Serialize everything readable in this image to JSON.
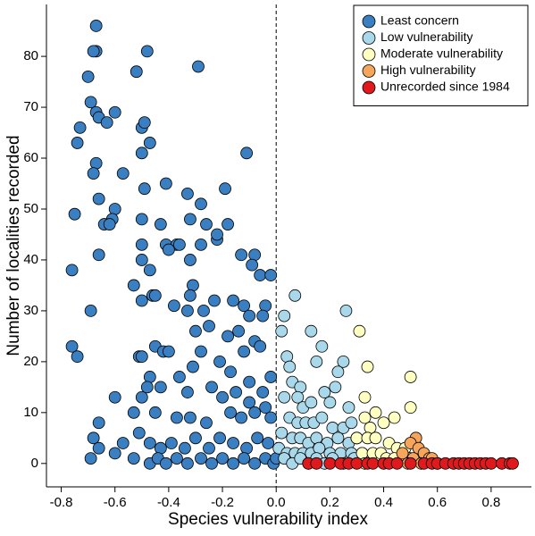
{
  "chart_data": {
    "type": "scatter",
    "xlabel": "Species vulnerability index",
    "ylabel": "Number of localities recorded",
    "xlim": [
      -0.855,
      0.95
    ],
    "ylim": [
      -4.6,
      90.2
    ],
    "xticks": [
      -0.8,
      -0.6,
      -0.4,
      -0.2,
      {
        "value": 0,
        "label": "0.0"
      },
      0.2,
      0.4,
      0.6,
      0.8
    ],
    "yticks": [
      0,
      10,
      20,
      30,
      40,
      50,
      60,
      70,
      80
    ],
    "vline": 0,
    "legend": "upper right",
    "series": [
      {
        "name": "Least concern",
        "color": "#3a7fc1",
        "x": [
          -0.67,
          -0.67,
          -0.68,
          -0.48,
          -0.52,
          -0.29,
          -0.7,
          -0.69,
          -0.67,
          -0.66,
          -0.6,
          -0.63,
          -0.73,
          -0.74,
          -0.5,
          -0.49,
          -0.47,
          -0.67,
          -0.68,
          -0.57,
          -0.5,
          -0.11,
          -0.49,
          -0.66,
          -0.6,
          -0.61,
          -0.5,
          -0.75,
          -0.64,
          -0.62,
          -0.41,
          -0.33,
          -0.19,
          -0.43,
          -0.32,
          -0.26,
          -0.41,
          -0.37,
          -0.36,
          -0.5,
          -0.28,
          -0.18,
          -0.28,
          -0.22,
          -0.22,
          -0.5,
          -0.47,
          -0.53,
          -0.4,
          -0.32,
          -0.76,
          -0.66,
          -0.31,
          -0.32,
          -0.13,
          -0.08,
          -0.09,
          -0.06,
          -0.02,
          -0.5,
          -0.46,
          -0.45,
          -0.38,
          -0.33,
          -0.27,
          -0.23,
          -0.16,
          -0.12,
          -0.1,
          -0.04,
          -0.05,
          -0.69,
          -0.76,
          -0.74,
          -0.45,
          -0.42,
          -0.4,
          -0.3,
          -0.25,
          -0.18,
          -0.14,
          -0.12,
          -0.08,
          -0.06,
          -0.28,
          -0.21,
          -0.51,
          -0.5,
          -0.47,
          -0.36,
          -0.31,
          -0.17,
          -0.1,
          -0.02,
          -0.6,
          -0.5,
          -0.48,
          -0.43,
          -0.33,
          -0.24,
          -0.2,
          -0.15,
          -0.1,
          -0.05,
          -0.66,
          -0.53,
          -0.45,
          -0.37,
          -0.32,
          -0.26,
          -0.17,
          -0.13,
          -0.08,
          -0.04,
          -0.02,
          -0.68,
          -0.66,
          -0.57,
          -0.51,
          -0.47,
          -0.43,
          -0.39,
          -0.34,
          -0.3,
          -0.25,
          -0.21,
          -0.16,
          -0.11,
          -0.07,
          -0.03,
          -0.69,
          -0.6,
          -0.53,
          -0.47,
          -0.44,
          -0.41,
          -0.37,
          -0.33,
          -0.28,
          -0.24,
          -0.2,
          -0.16,
          -0.12,
          -0.08,
          -0.04,
          -0.01,
          0.02,
          0.0
        ],
        "values": [
          86,
          81,
          81,
          81,
          77,
          78,
          76,
          71,
          69,
          68,
          69,
          67,
          66,
          63,
          66,
          67,
          63,
          59,
          57,
          57,
          61,
          61,
          54,
          52,
          50,
          48,
          48,
          49,
          47,
          47,
          55,
          53,
          54,
          47,
          48,
          47,
          43,
          43,
          43,
          43,
          51,
          47,
          43,
          44,
          45,
          40,
          38,
          35,
          42,
          40,
          38,
          41,
          35,
          33,
          41,
          41,
          39,
          37,
          37,
          32,
          33,
          33,
          31,
          30,
          30,
          32,
          32,
          31,
          29,
          31,
          29,
          30,
          23,
          21,
          23,
          22,
          22,
          26,
          27,
          25,
          26,
          22,
          24,
          23,
          22,
          20,
          21,
          21,
          17,
          17,
          19,
          18,
          16,
          17,
          13,
          13,
          15,
          15,
          14,
          15,
          13,
          14,
          12,
          14,
          8,
          10,
          10,
          9,
          9,
          8,
          10,
          9,
          10,
          11,
          9,
          5,
          3,
          4,
          6,
          4,
          3,
          4,
          3,
          5,
          3,
          5,
          4,
          3,
          5,
          4,
          1,
          2,
          1,
          0,
          1,
          0,
          1,
          0,
          1,
          0,
          1,
          0,
          1,
          0,
          1,
          0,
          2,
          1
        ]
      },
      {
        "name": "Low vulnerability",
        "color": "#a9d8ea",
        "x": [
          0.07,
          0.03,
          0.26,
          0.02,
          0.13,
          0.17,
          0.04,
          0.05,
          0.15,
          0.25,
          0.23,
          0.06,
          0.09,
          0.18,
          0.22,
          0.03,
          0.08,
          0.1,
          0.13,
          0.2,
          0.27,
          0.05,
          0.08,
          0.11,
          0.14,
          0.17,
          0.21,
          0.25,
          0.28,
          0.02,
          0.06,
          0.09,
          0.12,
          0.15,
          0.19,
          0.23,
          0.27,
          0.3,
          0.01,
          0.04,
          0.07,
          0.1,
          0.13,
          0.16,
          0.2,
          0.24,
          0.28,
          0.32,
          0.03,
          0.06,
          0.09,
          0.12,
          0.15,
          0.18,
          0.21,
          0.25,
          0.29
        ],
        "values": [
          33,
          29,
          30,
          26,
          26,
          23,
          21,
          19,
          20,
          20,
          18,
          16,
          15,
          14,
          15,
          13,
          13,
          11,
          12,
          12,
          11,
          9,
          8,
          8,
          8,
          9,
          7,
          7,
          8,
          6,
          5,
          5,
          4,
          5,
          4,
          5,
          4,
          5,
          3,
          2,
          2,
          2,
          2,
          3,
          2,
          2,
          2,
          2,
          1,
          0,
          1,
          0,
          1,
          0,
          1,
          0,
          1
        ]
      },
      {
        "name": "Moderate vulnerability",
        "color": "#ffffc2",
        "x": [
          0.31,
          0.5,
          0.34,
          0.33,
          0.37,
          0.33,
          0.5,
          0.4,
          0.44,
          0.35,
          0.3,
          0.34,
          0.37,
          0.42,
          0.45,
          0.48,
          0.32,
          0.36,
          0.39,
          0.41,
          0.44,
          0.5,
          0.33
        ],
        "values": [
          26,
          17,
          19,
          13,
          10,
          9,
          11,
          8,
          9,
          7,
          5,
          5,
          5,
          4,
          3,
          3,
          2,
          2,
          2,
          1,
          1,
          1,
          0
        ]
      },
      {
        "name": "High vulnerability",
        "color": "#f5a55c",
        "x": [
          0.52,
          0.5,
          0.53,
          0.55,
          0.47,
          0.51,
          0.57,
          0.54,
          0.49,
          0.6,
          0.58
        ],
        "values": [
          5,
          4,
          3,
          2,
          2,
          1,
          1,
          0,
          0,
          0,
          1
        ]
      },
      {
        "name": "Unrecorded since 1984",
        "color": "#e01a1c",
        "x": [
          0.12,
          0.15,
          0.2,
          0.24,
          0.27,
          0.3,
          0.34,
          0.36,
          0.4,
          0.42,
          0.45,
          0.5,
          0.55,
          0.58,
          0.6,
          0.63,
          0.66,
          0.68,
          0.7,
          0.72,
          0.74,
          0.76,
          0.78,
          0.8,
          0.84,
          0.87,
          0.88
        ],
        "values": [
          0,
          0,
          0,
          0,
          0,
          0,
          0,
          0,
          0,
          0,
          0,
          0,
          0,
          0,
          0,
          0,
          0,
          0,
          0,
          0,
          0,
          0,
          0,
          0,
          0,
          0,
          0
        ]
      }
    ]
  }
}
